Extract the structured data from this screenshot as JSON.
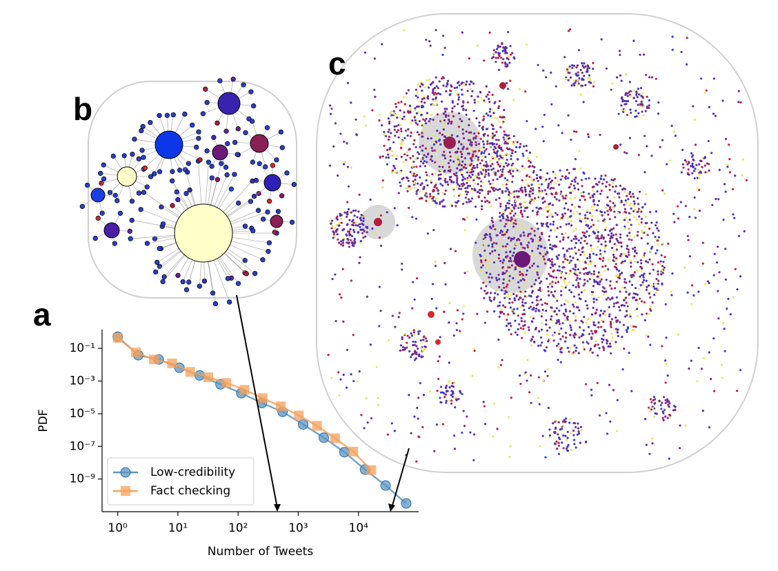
{
  "panel_labels": [
    "a",
    "b",
    "c"
  ],
  "chart_data": {
    "type": "line",
    "xlabel": "Number of Tweets",
    "ylabel": "PDF",
    "xscale": "log",
    "yscale": "log",
    "xlim": [
      0.55,
      100000
    ],
    "ylim": [
      1e-11,
      1.4
    ],
    "xticks": [
      {
        "value": 1,
        "label": "10⁰"
      },
      {
        "value": 10,
        "label": "10¹"
      },
      {
        "value": 100,
        "label": "10²"
      },
      {
        "value": 1000,
        "label": "10³"
      },
      {
        "value": 10000,
        "label": "10⁴"
      }
    ],
    "yticks": [
      {
        "value": 0.1,
        "label": "10⁻¹"
      },
      {
        "value": 0.001,
        "label": "10⁻³"
      },
      {
        "value": 1e-05,
        "label": "10⁻⁵"
      },
      {
        "value": 1e-07,
        "label": "10⁻⁷"
      },
      {
        "value": 1e-09,
        "label": "10⁻⁹"
      }
    ],
    "legend": "lower left",
    "series": [
      {
        "name": "Low-credibility",
        "color": "#5b95c4",
        "marker": "circle",
        "x": [
          1,
          2.2,
          4.8,
          10.6,
          23,
          51,
          113,
          249,
          548,
          1206,
          2653,
          5837,
          12841,
          28250,
          62150
        ],
        "values": [
          0.52,
          0.038,
          0.021,
          0.0065,
          0.0022,
          0.00063,
          0.00018,
          4.5e-05,
          1.3e-05,
          2.2e-06,
          3.4e-07,
          4.4e-08,
          3.8e-09,
          4e-10,
          3.2e-11
        ]
      },
      {
        "name": "Fact checking",
        "color": "#f5a05a",
        "marker": "square",
        "x": [
          1,
          2,
          4,
          8,
          16,
          32,
          64,
          128,
          256,
          512,
          1024,
          2048,
          4096,
          8192,
          16384
        ],
        "values": [
          0.44,
          0.056,
          0.021,
          0.012,
          0.0036,
          0.0017,
          0.00076,
          0.00029,
          8.9e-05,
          2.8e-05,
          7.8e-06,
          1.8e-06,
          3.1e-07,
          4.8e-08,
          3.5e-09
        ]
      }
    ]
  }
}
